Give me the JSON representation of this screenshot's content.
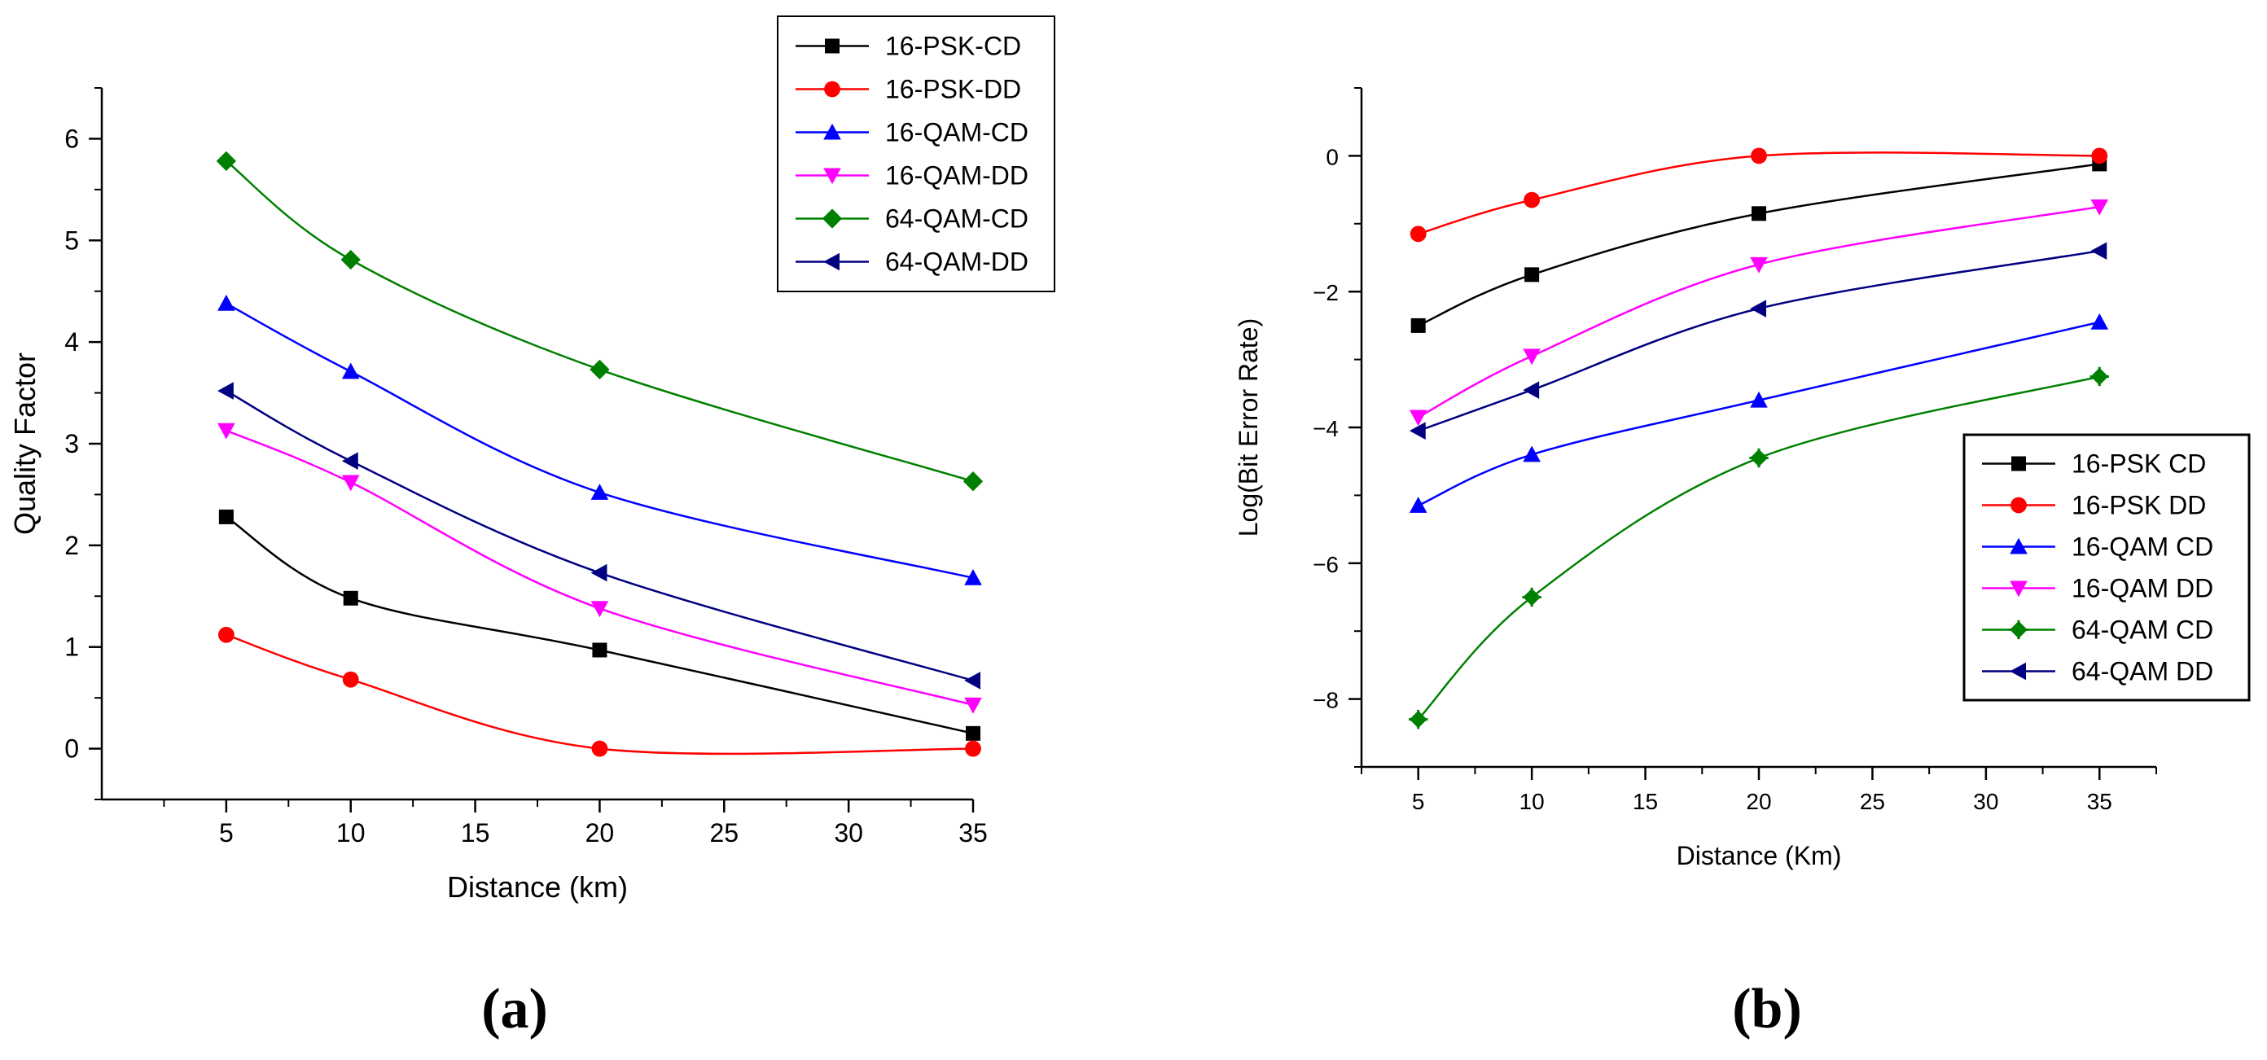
{
  "chart_data": [
    {
      "type": "line",
      "panel_label": "(a)",
      "title": "",
      "xlabel": "Distance (km)",
      "ylabel": "Quality Factor",
      "xlim": [
        0,
        35
      ],
      "ylim": [
        -0.5,
        6.5
      ],
      "xticks": [
        5,
        10,
        15,
        20,
        25,
        30,
        35
      ],
      "yticks": [
        0,
        1,
        2,
        3,
        4,
        5,
        6
      ],
      "x": [
        5,
        10,
        20,
        35
      ],
      "legend_position": "top-right",
      "series": [
        {
          "name": "16-PSK-CD",
          "color": "#000000",
          "marker": "square",
          "values": [
            2.28,
            1.48,
            0.97,
            0.15
          ]
        },
        {
          "name": "16-PSK-DD",
          "color": "#ff0000",
          "marker": "circle",
          "values": [
            1.12,
            0.68,
            0.0,
            0.0
          ]
        },
        {
          "name": "16-QAM-CD",
          "color": "#0000ff",
          "marker": "triangle-up",
          "values": [
            4.38,
            3.71,
            2.52,
            1.68
          ]
        },
        {
          "name": "16-QAM-DD",
          "color": "#ff00ff",
          "marker": "triangle-down",
          "values": [
            3.13,
            2.62,
            1.38,
            0.43
          ]
        },
        {
          "name": "64-QAM-CD",
          "color": "#008000",
          "marker": "diamond",
          "values": [
            5.78,
            4.81,
            3.73,
            2.63
          ]
        },
        {
          "name": "64-QAM-DD",
          "color": "#000080",
          "marker": "triangle-left",
          "values": [
            3.52,
            2.83,
            1.73,
            0.67
          ]
        }
      ]
    },
    {
      "type": "line",
      "panel_label": "(b)",
      "title": "",
      "xlabel": "Distance (Km)",
      "ylabel": "Log(Bit Error Rate)",
      "xlim": [
        2.5,
        37.5
      ],
      "ylim": [
        -9,
        1
      ],
      "xticks": [
        5,
        10,
        15,
        20,
        25,
        30,
        35
      ],
      "yticks": [
        0,
        -2,
        -4,
        -6,
        -8
      ],
      "x": [
        5,
        10,
        20,
        35
      ],
      "legend_position": "bottom-right",
      "series": [
        {
          "name": "16-PSK CD",
          "color": "#000000",
          "marker": "square",
          "values": [
            -2.5,
            -1.75,
            -0.85,
            -0.12
          ]
        },
        {
          "name": "16-PSK DD",
          "color": "#ff0000",
          "marker": "circle",
          "values": [
            -1.15,
            -0.65,
            0.0,
            0.0
          ]
        },
        {
          "name": "16-QAM CD",
          "color": "#0000ff",
          "marker": "triangle-up",
          "values": [
            -5.15,
            -4.4,
            -3.6,
            -2.45
          ]
        },
        {
          "name": "16-QAM DD",
          "color": "#ff00ff",
          "marker": "triangle-down",
          "values": [
            -3.85,
            -2.95,
            -1.6,
            -0.75
          ]
        },
        {
          "name": "64-QAM CD",
          "color": "#008000",
          "marker": "plus-diamond",
          "values": [
            -8.3,
            -6.5,
            -4.45,
            -3.25
          ]
        },
        {
          "name": "64-QAM DD",
          "color": "#000080",
          "marker": "triangle-left",
          "values": [
            -4.05,
            -3.45,
            -2.25,
            -1.4
          ]
        }
      ]
    }
  ]
}
